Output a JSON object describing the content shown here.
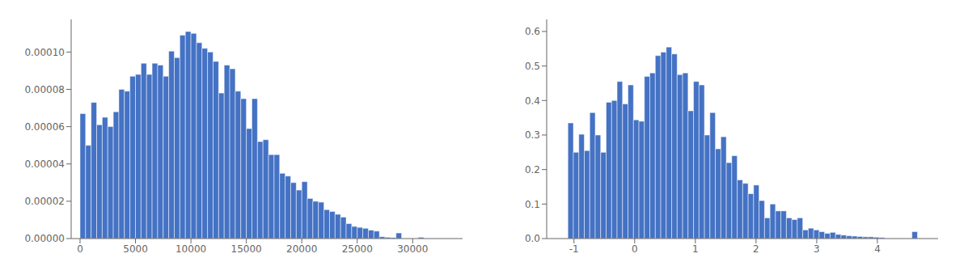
{
  "chart_data": [
    {
      "type": "histogram",
      "color": "#4472C4",
      "bins": [
        0,
        500,
        1000,
        1500,
        2000,
        2500,
        3000,
        3500,
        4000,
        4500,
        5000,
        5500,
        6000,
        6500,
        7000,
        7500,
        8000,
        8500,
        9000,
        9500,
        10000,
        10500,
        11000,
        11500,
        12000,
        12500,
        13000,
        13500,
        14000,
        14500,
        15000,
        15500,
        16000,
        16500,
        17000,
        17500,
        18000,
        18500,
        19000,
        19500,
        20000,
        20500,
        21000,
        21500,
        22000,
        22500,
        23000,
        23500,
        24000,
        24500,
        25000,
        25500,
        26000,
        26500,
        27000,
        27500,
        28000,
        28500,
        29000,
        29500,
        30000,
        30500,
        31000
      ],
      "values": [
        6.7e-05,
        5e-05,
        7.3e-05,
        6.1e-05,
        6.5e-05,
        6e-05,
        6.8e-05,
        8e-05,
        7.9e-05,
        8.7e-05,
        8.8e-05,
        9.4e-05,
        8.8e-05,
        9.4e-05,
        9.3e-05,
        8.7e-05,
        0.0001005,
        9.7e-05,
        0.000109,
        0.000111,
        0.00011,
        0.000105,
        0.000102,
        0.0001,
        9.5e-05,
        7.8e-05,
        9.3e-05,
        9.1e-05,
        7.9e-05,
        7.5e-05,
        5.9e-05,
        7.5e-05,
        5.2e-05,
        5.3e-05,
        4.5e-05,
        4.5e-05,
        3.5e-05,
        3.35e-05,
        3e-05,
        2.6e-05,
        3.05e-05,
        2.15e-05,
        2e-05,
        1.95e-05,
        1.55e-05,
        1.45e-05,
        1.3e-05,
        1.15e-05,
        8e-06,
        6.5e-06,
        6e-06,
        5.5e-06,
        4.5e-06,
        4e-06,
        1e-06,
        7e-07,
        5e-07,
        3e-06,
        0.0,
        0.0,
        0.0,
        7e-07
      ],
      "xlim": [
        -800,
        34500
      ],
      "xticks": [
        0,
        5000,
        10000,
        15000,
        20000,
        25000,
        30000
      ],
      "ylim": [
        0,
        0.0001175
      ],
      "yticks": [
        {
          "value": 0,
          "label": "0.00000"
        },
        {
          "value": 2e-05,
          "label": "0.00002"
        },
        {
          "value": 4e-05,
          "label": "0.00004"
        },
        {
          "value": 6e-05,
          "label": "0.00006"
        },
        {
          "value": 8e-05,
          "label": "0.00008"
        },
        {
          "value": 0.0001,
          "label": "0.00010"
        }
      ],
      "grid": false
    },
    {
      "type": "histogram",
      "color": "#4472C4",
      "bins": [
        -1.1,
        -1.01,
        -0.92,
        -0.83,
        -0.74,
        -0.65,
        -0.56,
        -0.47,
        -0.38,
        -0.29,
        -0.2,
        -0.11,
        -0.02,
        0.07,
        0.16,
        0.25,
        0.34,
        0.43,
        0.52,
        0.61,
        0.7,
        0.79,
        0.88,
        0.97,
        1.06,
        1.15,
        1.24,
        1.33,
        1.42,
        1.51,
        1.6,
        1.69,
        1.78,
        1.87,
        1.96,
        2.05,
        2.14,
        2.23,
        2.32,
        2.41,
        2.5,
        2.59,
        2.68,
        2.77,
        2.86,
        2.95,
        3.04,
        3.13,
        3.22,
        3.31,
        3.4,
        3.49,
        3.58,
        3.67,
        3.76,
        3.85,
        3.94,
        4.03,
        4.12,
        4.21,
        4.3,
        4.39,
        4.48,
        4.57,
        4.66
      ],
      "values": [
        0.335,
        0.25,
        0.302,
        0.255,
        0.365,
        0.3,
        0.25,
        0.395,
        0.4,
        0.455,
        0.39,
        0.445,
        0.344,
        0.34,
        0.47,
        0.48,
        0.53,
        0.54,
        0.555,
        0.535,
        0.475,
        0.48,
        0.37,
        0.455,
        0.445,
        0.3,
        0.365,
        0.26,
        0.295,
        0.22,
        0.24,
        0.17,
        0.16,
        0.13,
        0.155,
        0.11,
        0.06,
        0.1,
        0.08,
        0.08,
        0.06,
        0.055,
        0.06,
        0.025,
        0.03,
        0.025,
        0.02,
        0.015,
        0.018,
        0.012,
        0.01,
        0.008,
        0.007,
        0.006,
        0.005,
        0.005,
        0.004,
        0.003,
        0.0,
        0.0,
        0.0,
        0.0,
        0.0,
        0.02
      ],
      "xlim": [
        -1.45,
        5.0
      ],
      "xticks": [
        -1,
        0,
        1,
        2,
        3,
        4
      ],
      "ylim": [
        0,
        0.635
      ],
      "yticks": [
        {
          "value": 0,
          "label": "0.0"
        },
        {
          "value": 0.1,
          "label": "0.1"
        },
        {
          "value": 0.2,
          "label": "0.2"
        },
        {
          "value": 0.3,
          "label": "0.3"
        },
        {
          "value": 0.4,
          "label": "0.4"
        },
        {
          "value": 0.5,
          "label": "0.5"
        },
        {
          "value": 0.6,
          "label": "0.6"
        }
      ],
      "grid": false
    }
  ]
}
